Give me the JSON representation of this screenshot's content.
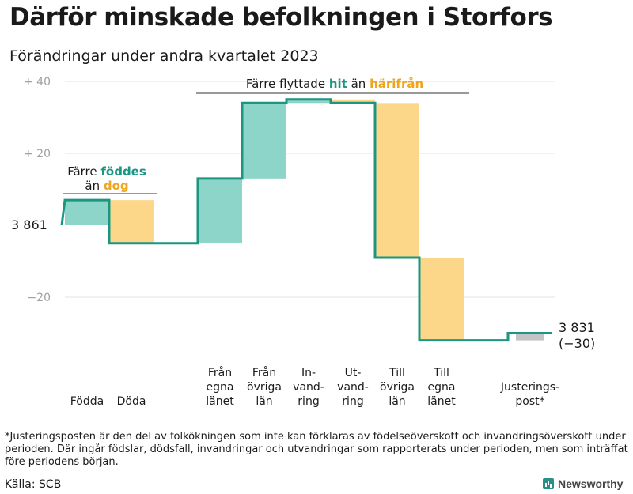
{
  "title": "Därför minskade befolkningen i Storfors",
  "subtitle": "Förändringar under andra kvartalet 2023",
  "colors": {
    "hit": "#8dd5c9",
    "harifran": "#fcd78a",
    "line": "#1a9682",
    "adjust": "#c4c4c4",
    "grid": "#e3e3e3",
    "hit_text": "#1a9682",
    "harifran_text": "#f0a521"
  },
  "chart_data": {
    "type": "waterfall",
    "start": {
      "label": "3  861",
      "value": 3861
    },
    "end": {
      "label": "3 831",
      "change_label": "(−30)",
      "value": 3831
    },
    "y_ticks": [
      {
        "value": 40,
        "label": "+  40"
      },
      {
        "value": 20,
        "label": "+  20"
      },
      {
        "value": -20,
        "label": "−20"
      }
    ],
    "ylim": [
      -30,
      40
    ],
    "steps": [
      {
        "label": [
          "Födda"
        ],
        "change": 7,
        "color": "hit"
      },
      {
        "label": [
          "Döda"
        ],
        "change": -12,
        "color": "harifran"
      },
      {
        "label": [],
        "change": 0,
        "color": "none"
      },
      {
        "label": [
          "Från",
          "egna",
          "länet"
        ],
        "change": 18,
        "color": "hit"
      },
      {
        "label": [
          "Från",
          "övriga",
          "län"
        ],
        "change": 21,
        "color": "hit"
      },
      {
        "label": [
          "In-",
          "vand-",
          "ring"
        ],
        "change": 1,
        "color": "hit"
      },
      {
        "label": [
          "Ut-",
          "vand-",
          "ring"
        ],
        "change": -1,
        "color": "harifran"
      },
      {
        "label": [
          "Till",
          "övriga",
          "län"
        ],
        "change": -43,
        "color": "harifran"
      },
      {
        "label": [
          "Till",
          "egna",
          "länet"
        ],
        "change": -23,
        "color": "harifran"
      },
      {
        "label": [],
        "change": 0,
        "color": "none"
      },
      {
        "label": [
          "Justerings-",
          "post*"
        ],
        "change": 2,
        "color": "adjust"
      }
    ],
    "annotations": {
      "births": {
        "line1": "Färre ",
        "line1_hl": "föddes",
        "line2": "än ",
        "line2_hl": "dog"
      },
      "migration": {
        "text": "Färre flyttade ",
        "hl1": "hit",
        "mid": " än ",
        "hl2": "härifrån"
      }
    }
  },
  "footnote": "*Justeringsposten är den del av folkökningen som inte kan förklaras av födelseöverskott och invandringsöverskott under perioden. Där ingår födslar, dödsfall, invandringar och utvandringar som rapporterats under perioden, men som inträffat före periodens början.",
  "source": "Källa: SCB",
  "brand": "Newsworthy"
}
